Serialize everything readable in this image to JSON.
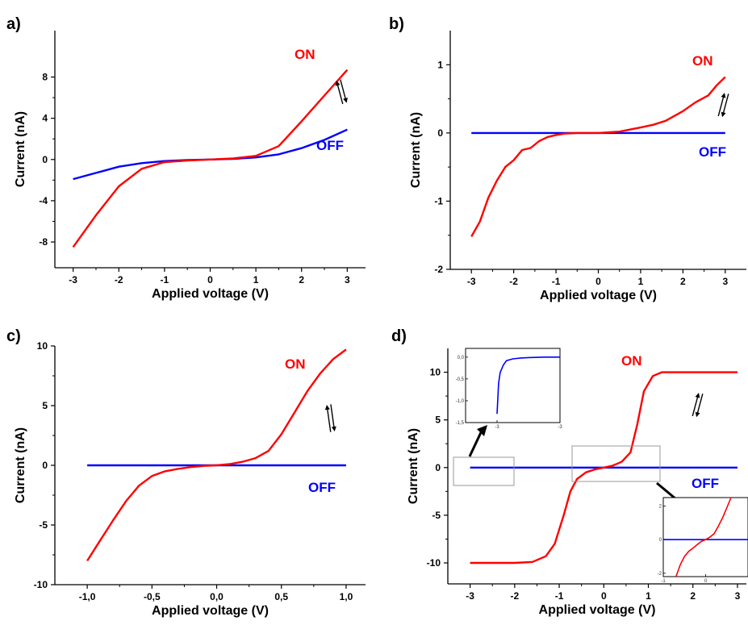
{
  "chart_data": [
    {
      "panel": "a)",
      "type": "line",
      "xlabel": "Applied voltage (V)",
      "ylabel": "Current (nA)",
      "xlim": [
        -3.4,
        3.4
      ],
      "ylim": [
        -10.5,
        12.5
      ],
      "xticks": [
        -3,
        -2,
        -1,
        0,
        1,
        2,
        3
      ],
      "xtick_labels": [
        "-3",
        "-2",
        "-1",
        "0",
        "1",
        "2",
        "3"
      ],
      "yticks": [
        -8,
        -4,
        0,
        4,
        8
      ],
      "ytick_labels": [
        "-8",
        "-4",
        "0",
        "4",
        "8"
      ],
      "series": [
        {
          "name": "ON",
          "color": "#ff0000",
          "x": [
            -3,
            -2.5,
            -2,
            -1.5,
            -1,
            -0.5,
            0,
            0.5,
            1,
            1.5,
            2,
            2.5,
            3
          ],
          "y": [
            -8.5,
            -5.4,
            -2.6,
            -0.9,
            -0.25,
            -0.1,
            0,
            0.1,
            0.35,
            1.3,
            3.7,
            6.2,
            8.7
          ]
        },
        {
          "name": "OFF",
          "color": "#0000ff",
          "x": [
            -3,
            -2.5,
            -2,
            -1.5,
            -1,
            -0.5,
            0,
            0.5,
            1,
            1.5,
            2,
            2.5,
            3
          ],
          "y": [
            -1.9,
            -1.3,
            -0.7,
            -0.35,
            -0.15,
            -0.05,
            0,
            0.05,
            0.2,
            0.5,
            1.1,
            1.9,
            2.9
          ]
        }
      ],
      "annotations": [
        "⇅ sweep direction arrows"
      ]
    },
    {
      "panel": "b)",
      "type": "line",
      "xlabel": "Applied voltage (V)",
      "ylabel": "Current (nA)",
      "xlim": [
        -3.5,
        3.5
      ],
      "ylim": [
        -2,
        1.5
      ],
      "xticks": [
        -3,
        -2,
        -1,
        0,
        1,
        2,
        3
      ],
      "xtick_labels": [
        "-3",
        "-2",
        "-1",
        "0",
        "1",
        "2",
        "3"
      ],
      "yticks": [
        -2,
        -1,
        0,
        1
      ],
      "ytick_labels": [
        "-2",
        "-1",
        "0",
        "1"
      ],
      "series": [
        {
          "name": "ON",
          "color": "#ff0000",
          "x": [
            -3,
            -2.8,
            -2.6,
            -2.4,
            -2.2,
            -2,
            -1.8,
            -1.6,
            -1.4,
            -1.2,
            -1,
            -0.8,
            -0.5,
            0,
            0.5,
            1,
            1.3,
            1.6,
            2,
            2.3,
            2.6,
            2.8,
            3
          ],
          "y": [
            -1.52,
            -1.3,
            -0.95,
            -0.7,
            -0.5,
            -0.4,
            -0.25,
            -0.22,
            -0.12,
            -0.06,
            -0.03,
            -0.01,
            0,
            0,
            0.02,
            0.08,
            0.12,
            0.18,
            0.32,
            0.45,
            0.55,
            0.7,
            0.82
          ]
        },
        {
          "name": "OFF",
          "color": "#0000ff",
          "x": [
            -3,
            3
          ],
          "y": [
            0,
            0
          ]
        }
      ]
    },
    {
      "panel": "c)",
      "type": "line",
      "xlabel": "Applied voltage (V)",
      "ylabel": "Current (nA)",
      "xlim": [
        -1.25,
        1.15
      ],
      "ylim": [
        -10,
        10
      ],
      "xticks": [
        -1,
        -0.5,
        0,
        0.5,
        1
      ],
      "xtick_labels": [
        "-1,0",
        "-0,5",
        "0,0",
        "0,5",
        "1,0"
      ],
      "yticks": [
        -10,
        -5,
        0,
        5,
        10
      ],
      "ytick_labels": [
        "-10",
        "-5",
        "0",
        "5",
        "10"
      ],
      "series": [
        {
          "name": "ON",
          "color": "#ff0000",
          "x": [
            -1,
            -0.9,
            -0.8,
            -0.7,
            -0.6,
            -0.5,
            -0.4,
            -0.3,
            -0.2,
            -0.1,
            0,
            0.1,
            0.2,
            0.3,
            0.4,
            0.5,
            0.6,
            0.7,
            0.8,
            0.9,
            1
          ],
          "y": [
            -8,
            -6.3,
            -4.6,
            -3,
            -1.7,
            -0.9,
            -0.5,
            -0.3,
            -0.15,
            -0.05,
            0,
            0.1,
            0.3,
            0.6,
            1.2,
            2.6,
            4.4,
            6.2,
            7.7,
            8.9,
            9.7
          ]
        },
        {
          "name": "OFF",
          "color": "#0000ff",
          "x": [
            -1,
            1
          ],
          "y": [
            0,
            0
          ]
        }
      ]
    },
    {
      "panel": "d)",
      "type": "line",
      "xlabel": "Applied voltage (V)",
      "ylabel": "Current (nA)",
      "xlim": [
        -3.5,
        3.2
      ],
      "ylim": [
        -12.2,
        12.5
      ],
      "xticks": [
        -3,
        -2,
        -1,
        0,
        1,
        2,
        3
      ],
      "xtick_labels": [
        "-3",
        "-2",
        "-1",
        "0",
        "1",
        "2",
        "3"
      ],
      "yticks": [
        -10,
        -5,
        0,
        5,
        10
      ],
      "ytick_labels": [
        "-10",
        "-5",
        "0",
        "5",
        "10"
      ],
      "series": [
        {
          "name": "ON",
          "color": "#ff0000",
          "x": [
            -3,
            -2.5,
            -2,
            -1.6,
            -1.3,
            -1.1,
            -0.9,
            -0.75,
            -0.6,
            -0.4,
            -0.2,
            0,
            0.2,
            0.4,
            0.6,
            0.75,
            0.9,
            1.1,
            1.3,
            1.6,
            2,
            2.5,
            3
          ],
          "y": [
            -10,
            -10,
            -10,
            -9.9,
            -9.3,
            -8,
            -5,
            -2.5,
            -1.2,
            -0.5,
            -0.2,
            0,
            0.2,
            0.6,
            1.6,
            4.5,
            8,
            9.6,
            10,
            10,
            10,
            10,
            10
          ]
        },
        {
          "name": "OFF",
          "color": "#0000ff",
          "x": [
            -3,
            3
          ],
          "y": [
            0,
            0
          ]
        }
      ],
      "insets": [
        {
          "name": "inset-top",
          "xlim": [
            -3.2,
            -2.6
          ],
          "ylim": [
            -1.5,
            0.2
          ],
          "xtick_labels": [
            "-3",
            "-3"
          ],
          "ytick_labels": [
            "0,0",
            "-0,5",
            "-1,0",
            "-1,5"
          ],
          "series": [
            {
              "color": "#0000ff",
              "x": [
                -3.0,
                -2.99,
                -2.98,
                -2.96,
                -2.94,
                -2.9,
                -2.85,
                -2.8,
                -2.7,
                -2.6
              ],
              "y": [
                -1.3,
                -0.6,
                -0.35,
                -0.18,
                -0.08,
                -0.04,
                -0.02,
                -0.01,
                0,
                0
              ]
            }
          ]
        },
        {
          "name": "inset-bottom",
          "xlim": [
            -1,
            1
          ],
          "ylim": [
            -2.2,
            2.5
          ],
          "xtick_labels": [
            "-1",
            "0"
          ],
          "ytick_labels": [
            "2",
            "0",
            "-2"
          ],
          "series": [
            {
              "color": "#ff0000",
              "x": [
                -0.7,
                -0.6,
                -0.5,
                -0.4,
                -0.3,
                -0.2,
                -0.1,
                0,
                0.1,
                0.2,
                0.3,
                0.4,
                0.5,
                0.6
              ],
              "y": [
                -2.2,
                -1.5,
                -1.0,
                -0.7,
                -0.5,
                -0.3,
                -0.1,
                0,
                0.15,
                0.35,
                0.8,
                1.3,
                1.9,
                2.5
              ]
            },
            {
              "color": "#0000ff",
              "x": [
                -1,
                1
              ],
              "y": [
                0,
                0
              ]
            }
          ]
        }
      ]
    }
  ]
}
